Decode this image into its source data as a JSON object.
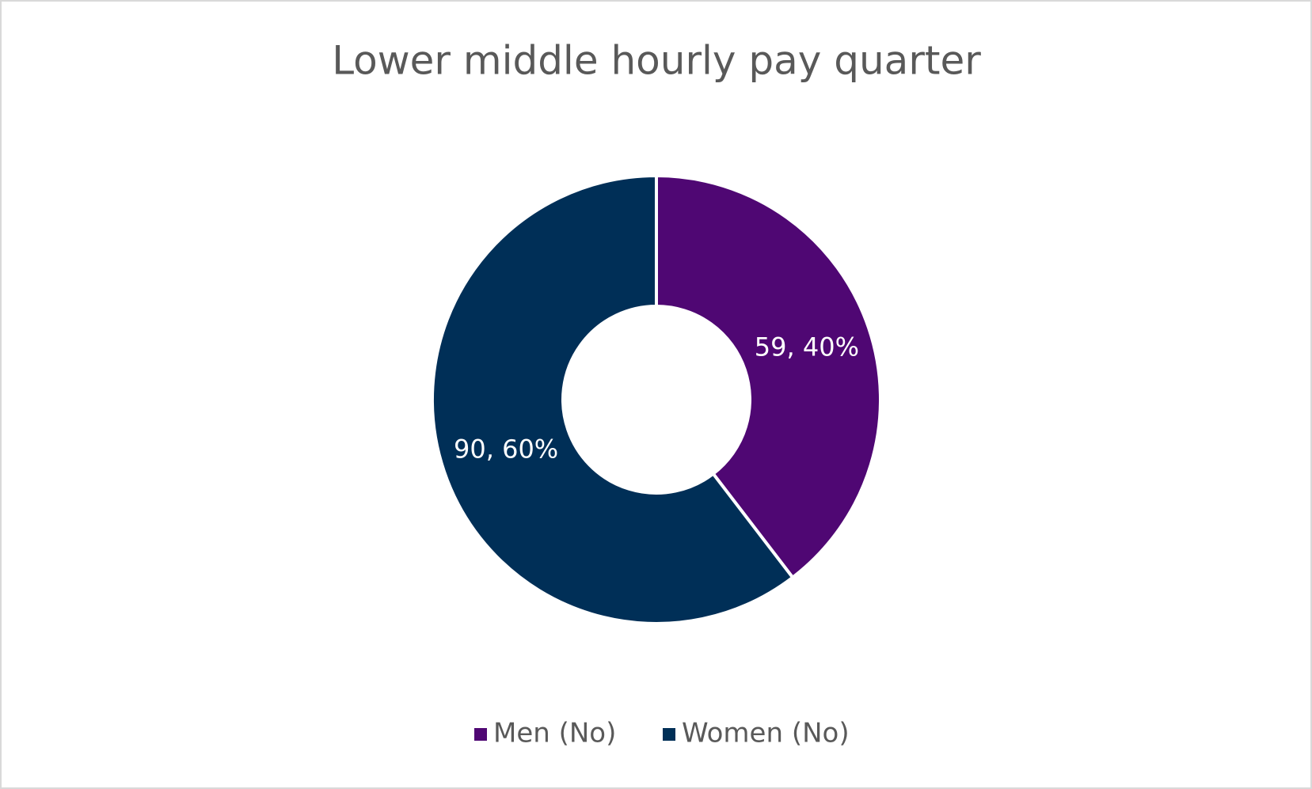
{
  "chart_data": {
    "type": "doughnut",
    "title": "Lower middle hourly pay quarter",
    "categories": [
      "Men (No)",
      "Women (No)"
    ],
    "values": [
      59,
      90
    ],
    "value_labels": [
      "59, 40%",
      "90, 60%"
    ],
    "colors": [
      "#4f0773",
      "#002f57"
    ],
    "legend": "bottom"
  }
}
